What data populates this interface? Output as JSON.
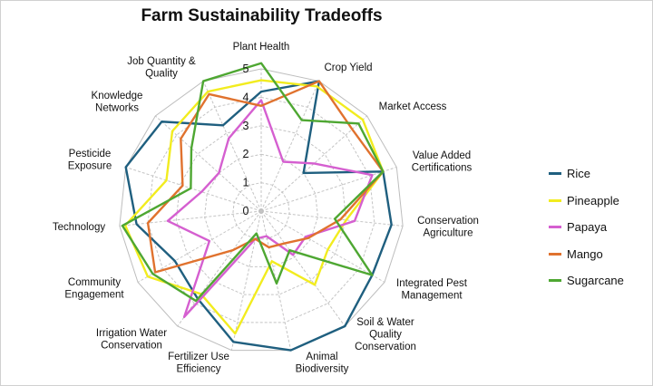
{
  "chart_data": {
    "type": "radar",
    "title": "Farm Sustainability Tradeoffs",
    "axes": [
      "Plant Health",
      "Crop Yield",
      "Market Access",
      "Value Added Certifications",
      "Conservation Agriculture",
      "Integrated Pest Management",
      "Soil & Water Quality Conservation",
      "Animal Biodiversity",
      "Fertilizer Use Efficiency",
      "Irrigation Water Conservation",
      "Community Engagement",
      "Technology",
      "Pesticide Exposure",
      "Knowledge Networks",
      "Job Quantity & Quality"
    ],
    "range": [
      0,
      5
    ],
    "ticks": [
      0,
      1,
      2,
      3,
      4,
      5
    ],
    "grid": true,
    "legend_position": "right",
    "series": [
      {
        "name": "Rice",
        "color": "#1f5f7f",
        "values": [
          4.2,
          5.0,
          2.0,
          4.5,
          4.6,
          4.5,
          5.0,
          5.0,
          4.7,
          3.8,
          3.5,
          4.4,
          5.0,
          4.7,
          3.3
        ]
      },
      {
        "name": "Pineapple",
        "color": "#f2ec1f",
        "values": [
          4.6,
          4.8,
          4.8,
          4.5,
          3.0,
          2.7,
          3.2,
          1.8,
          4.4,
          3.6,
          4.6,
          4.8,
          3.5,
          4.2,
          4.6
        ]
      },
      {
        "name": "Papaya",
        "color": "#d55fd0",
        "values": [
          3.9,
          1.9,
          2.5,
          4.1,
          3.3,
          1.8,
          1.9,
          0.9,
          1.0,
          4.6,
          2.1,
          3.3,
          2.2,
          2.0,
          2.8
        ]
      },
      {
        "name": "Mango",
        "color": "#e0722e",
        "values": [
          3.7,
          5.0,
          4.3,
          4.5,
          2.8,
          1.9,
          1.4,
          1.3,
          1.0,
          1.7,
          4.3,
          4.0,
          2.9,
          3.8,
          4.5
        ]
      },
      {
        "name": "Sugarcane",
        "color": "#4ea732",
        "values": [
          5.2,
          3.5,
          4.6,
          4.5,
          2.6,
          4.5,
          1.7,
          2.6,
          0.8,
          3.9,
          4.4,
          4.9,
          2.6,
          3.3,
          5.0
        ]
      }
    ]
  }
}
